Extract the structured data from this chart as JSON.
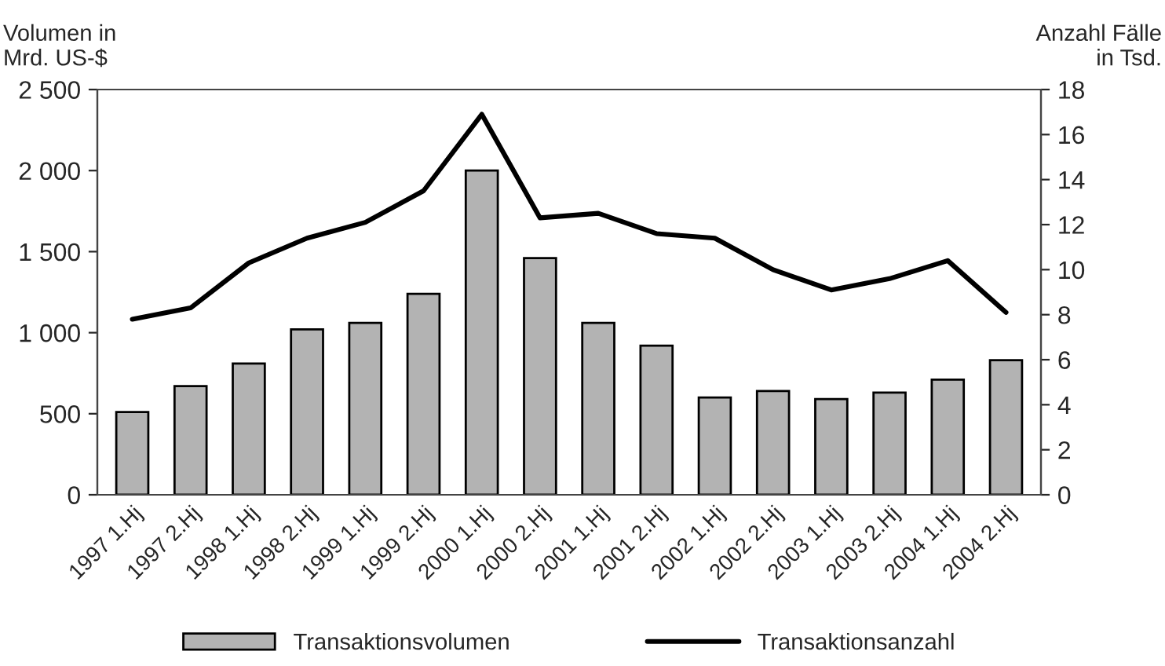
{
  "chart_data": {
    "type": "bar",
    "ylabel": "Volumen in\nMrd. US-$",
    "y2label": "Anzahl Fälle\nin Tsd.",
    "categories": [
      "1997 1.Hj",
      "1997 2.Hj",
      "1998 1.Hj",
      "1998 2.Hj",
      "1999 1.Hj",
      "1999 2.Hj",
      "2000 1.Hj",
      "2000 2.Hj",
      "2001 1.Hj",
      "2001 2.Hj",
      "2002 1.Hj",
      "2002 2.Hj",
      "2003 1.Hj",
      "2003 2.Hj",
      "2004 1.Hj",
      "2004 2.Hj"
    ],
    "series": [
      {
        "name": "Transaktionsvolumen",
        "color": "#b3b3b3",
        "values": [
          510,
          670,
          810,
          1020,
          1060,
          1240,
          2000,
          1460,
          1060,
          920,
          600,
          640,
          590,
          630,
          710,
          830
        ]
      },
      {
        "name": "Transaktionsanzahl",
        "type": "line",
        "axis": "y2",
        "color": "#000000",
        "values": [
          7.8,
          8.3,
          10.3,
          11.4,
          12.1,
          13.5,
          16.9,
          12.3,
          12.5,
          11.6,
          11.4,
          10.0,
          9.1,
          9.6,
          10.4,
          8.1
        ]
      }
    ],
    "ylim": [
      0,
      2500
    ],
    "yticks": [
      {
        "value": 0,
        "label": "0"
      },
      {
        "value": 500,
        "label": "500"
      },
      {
        "value": 1000,
        "label": "1 000"
      },
      {
        "value": 1500,
        "label": "1 500"
      },
      {
        "value": 2000,
        "label": "2 000"
      },
      {
        "value": 2500,
        "label": "2 500"
      }
    ],
    "y2lim": [
      0,
      18
    ],
    "y2ticks": [
      0,
      2,
      4,
      6,
      8,
      10,
      12,
      14,
      16,
      18
    ],
    "grid": false,
    "legend": "bottom",
    "marker": "none",
    "line_style": "solid"
  }
}
